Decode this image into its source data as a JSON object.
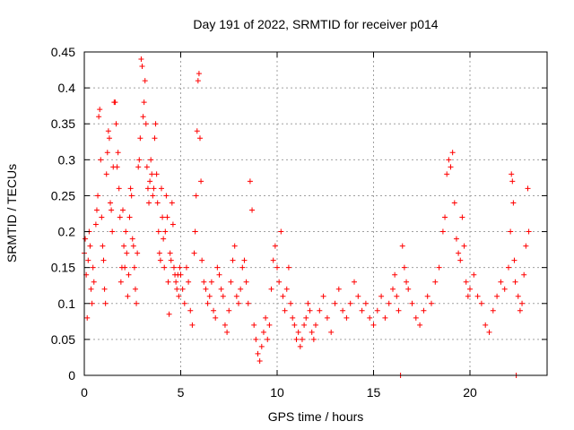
{
  "chart_data": {
    "type": "scatter",
    "title": "Day 191 of 2022, SRMTID for receiver p014",
    "xlabel": "GPS time / hours",
    "ylabel": "SRMTID / TECUs",
    "xlim": [
      0,
      24
    ],
    "ylim": [
      0,
      0.45
    ],
    "x_ticks": [
      0,
      5,
      10,
      15,
      20
    ],
    "x_tick_labels": [
      "0",
      "5",
      "10",
      "15",
      "20"
    ],
    "y_ticks": [
      0,
      0.05,
      0.1,
      0.15,
      0.2,
      0.25,
      0.3,
      0.35,
      0.4,
      0.45
    ],
    "y_tick_labels": [
      "0",
      "0.05",
      "0.1",
      "0.15",
      "0.2",
      "0.25",
      "0.3",
      "0.35",
      "0.4",
      "0.45"
    ],
    "grid": true,
    "marker": "plus",
    "color": "#ff0000",
    "series": [
      {
        "name": "SRMTID",
        "points": [
          [
            0.0,
            0.17
          ],
          [
            0.05,
            0.19
          ],
          [
            0.1,
            0.14
          ],
          [
            0.15,
            0.08
          ],
          [
            0.2,
            0.16
          ],
          [
            0.25,
            0.2
          ],
          [
            0.3,
            0.18
          ],
          [
            0.35,
            0.12
          ],
          [
            0.4,
            0.1
          ],
          [
            0.45,
            0.15
          ],
          [
            0.5,
            0.13
          ],
          [
            0.6,
            0.21
          ],
          [
            0.65,
            0.23
          ],
          [
            0.7,
            0.25
          ],
          [
            0.75,
            0.36
          ],
          [
            0.8,
            0.37
          ],
          [
            0.85,
            0.3
          ],
          [
            0.9,
            0.22
          ],
          [
            0.95,
            0.18
          ],
          [
            1.0,
            0.16
          ],
          [
            1.05,
            0.12
          ],
          [
            1.1,
            0.1
          ],
          [
            1.15,
            0.28
          ],
          [
            1.2,
            0.31
          ],
          [
            1.25,
            0.34
          ],
          [
            1.3,
            0.33
          ],
          [
            1.35,
            0.24
          ],
          [
            1.4,
            0.23
          ],
          [
            1.45,
            0.2
          ],
          [
            1.5,
            0.29
          ],
          [
            1.55,
            0.38
          ],
          [
            1.6,
            0.38
          ],
          [
            1.65,
            0.35
          ],
          [
            1.7,
            0.29
          ],
          [
            1.75,
            0.31
          ],
          [
            1.8,
            0.26
          ],
          [
            1.85,
            0.22
          ],
          [
            1.9,
            0.13
          ],
          [
            1.95,
            0.15
          ],
          [
            2.0,
            0.23
          ],
          [
            2.05,
            0.18
          ],
          [
            2.1,
            0.15
          ],
          [
            2.15,
            0.2
          ],
          [
            2.2,
            0.17
          ],
          [
            2.25,
            0.11
          ],
          [
            2.3,
            0.14
          ],
          [
            2.35,
            0.22
          ],
          [
            2.4,
            0.26
          ],
          [
            2.45,
            0.25
          ],
          [
            2.5,
            0.19
          ],
          [
            2.55,
            0.18
          ],
          [
            2.6,
            0.15
          ],
          [
            2.65,
            0.12
          ],
          [
            2.7,
            0.1
          ],
          [
            2.75,
            0.17
          ],
          [
            2.8,
            0.29
          ],
          [
            2.85,
            0.3
          ],
          [
            2.9,
            0.33
          ],
          [
            2.95,
            0.44
          ],
          [
            3.0,
            0.43
          ],
          [
            3.05,
            0.36
          ],
          [
            3.1,
            0.38
          ],
          [
            3.15,
            0.41
          ],
          [
            3.2,
            0.35
          ],
          [
            3.25,
            0.29
          ],
          [
            3.3,
            0.26
          ],
          [
            3.35,
            0.24
          ],
          [
            3.4,
            0.27
          ],
          [
            3.45,
            0.3
          ],
          [
            3.5,
            0.28
          ],
          [
            3.55,
            0.25
          ],
          [
            3.6,
            0.26
          ],
          [
            3.65,
            0.33
          ],
          [
            3.7,
            0.35
          ],
          [
            3.75,
            0.28
          ],
          [
            3.8,
            0.24
          ],
          [
            3.85,
            0.2
          ],
          [
            3.9,
            0.17
          ],
          [
            3.95,
            0.16
          ],
          [
            4.0,
            0.26
          ],
          [
            4.05,
            0.22
          ],
          [
            4.1,
            0.19
          ],
          [
            4.15,
            0.15
          ],
          [
            4.2,
            0.2
          ],
          [
            4.25,
            0.25
          ],
          [
            4.3,
            0.22
          ],
          [
            4.35,
            0.13
          ],
          [
            4.4,
            0.085
          ],
          [
            4.45,
            0.17
          ],
          [
            4.5,
            0.16
          ],
          [
            4.55,
            0.24
          ],
          [
            4.6,
            0.21
          ],
          [
            4.65,
            0.15
          ],
          [
            4.7,
            0.14
          ],
          [
            4.75,
            0.13
          ],
          [
            4.8,
            0.12
          ],
          [
            4.85,
            0.14
          ],
          [
            4.9,
            0.11
          ],
          [
            4.95,
            0.15
          ],
          [
            5.0,
            0.14
          ],
          [
            5.1,
            0.12
          ],
          [
            5.2,
            0.1
          ],
          [
            5.3,
            0.15
          ],
          [
            5.4,
            0.13
          ],
          [
            5.5,
            0.09
          ],
          [
            5.6,
            0.07
          ],
          [
            5.7,
            0.17
          ],
          [
            5.75,
            0.2
          ],
          [
            5.8,
            0.25
          ],
          [
            5.85,
            0.34
          ],
          [
            5.9,
            0.41
          ],
          [
            5.95,
            0.42
          ],
          [
            6.0,
            0.33
          ],
          [
            6.05,
            0.27
          ],
          [
            6.1,
            0.16
          ],
          [
            6.2,
            0.13
          ],
          [
            6.3,
            0.12
          ],
          [
            6.4,
            0.1
          ],
          [
            6.5,
            0.11
          ],
          [
            6.6,
            0.13
          ],
          [
            6.7,
            0.09
          ],
          [
            6.8,
            0.08
          ],
          [
            6.9,
            0.15
          ],
          [
            7.0,
            0.14
          ],
          [
            7.1,
            0.12
          ],
          [
            7.2,
            0.11
          ],
          [
            7.3,
            0.07
          ],
          [
            7.4,
            0.06
          ],
          [
            7.5,
            0.09
          ],
          [
            7.6,
            0.13
          ],
          [
            7.7,
            0.16
          ],
          [
            7.8,
            0.18
          ],
          [
            7.9,
            0.11
          ],
          [
            8.0,
            0.1
          ],
          [
            8.1,
            0.12
          ],
          [
            8.2,
            0.15
          ],
          [
            8.3,
            0.16
          ],
          [
            8.4,
            0.13
          ],
          [
            8.5,
            0.1
          ],
          [
            8.6,
            0.27
          ],
          [
            8.7,
            0.23
          ],
          [
            8.8,
            0.07
          ],
          [
            8.9,
            0.05
          ],
          [
            9.0,
            0.03
          ],
          [
            9.1,
            0.02
          ],
          [
            9.2,
            0.04
          ],
          [
            9.3,
            0.06
          ],
          [
            9.4,
            0.08
          ],
          [
            9.5,
            0.05
          ],
          [
            9.6,
            0.07
          ],
          [
            9.7,
            0.12
          ],
          [
            9.8,
            0.16
          ],
          [
            9.9,
            0.18
          ],
          [
            10.0,
            0.15
          ],
          [
            10.1,
            0.13
          ],
          [
            10.2,
            0.2
          ],
          [
            10.3,
            0.11
          ],
          [
            10.4,
            0.09
          ],
          [
            10.5,
            0.12
          ],
          [
            10.6,
            0.15
          ],
          [
            10.7,
            0.1
          ],
          [
            10.8,
            0.08
          ],
          [
            10.9,
            0.07
          ],
          [
            11.0,
            0.05
          ],
          [
            11.1,
            0.06
          ],
          [
            11.2,
            0.04
          ],
          [
            11.3,
            0.05
          ],
          [
            11.4,
            0.07
          ],
          [
            11.5,
            0.08
          ],
          [
            11.6,
            0.1
          ],
          [
            11.7,
            0.09
          ],
          [
            11.8,
            0.06
          ],
          [
            11.9,
            0.05
          ],
          [
            12.0,
            0.07
          ],
          [
            12.2,
            0.09
          ],
          [
            12.4,
            0.11
          ],
          [
            12.6,
            0.08
          ],
          [
            12.8,
            0.06
          ],
          [
            13.0,
            0.1
          ],
          [
            13.2,
            0.12
          ],
          [
            13.4,
            0.09
          ],
          [
            13.6,
            0.08
          ],
          [
            13.8,
            0.1
          ],
          [
            14.0,
            0.13
          ],
          [
            14.2,
            0.11
          ],
          [
            14.4,
            0.09
          ],
          [
            14.6,
            0.1
          ],
          [
            14.8,
            0.08
          ],
          [
            15.0,
            0.07
          ],
          [
            15.2,
            0.09
          ],
          [
            15.4,
            0.11
          ],
          [
            15.6,
            0.08
          ],
          [
            15.8,
            0.1
          ],
          [
            16.0,
            0.12
          ],
          [
            16.1,
            0.14
          ],
          [
            16.2,
            0.11
          ],
          [
            16.3,
            0.09
          ],
          [
            16.4,
            0.0
          ],
          [
            16.5,
            0.18
          ],
          [
            16.6,
            0.15
          ],
          [
            16.7,
            0.13
          ],
          [
            16.8,
            0.12
          ],
          [
            17.0,
            0.1
          ],
          [
            17.2,
            0.08
          ],
          [
            17.4,
            0.07
          ],
          [
            17.6,
            0.09
          ],
          [
            17.8,
            0.11
          ],
          [
            18.0,
            0.1
          ],
          [
            18.2,
            0.13
          ],
          [
            18.4,
            0.15
          ],
          [
            18.6,
            0.2
          ],
          [
            18.7,
            0.22
          ],
          [
            18.8,
            0.28
          ],
          [
            18.9,
            0.3
          ],
          [
            19.0,
            0.29
          ],
          [
            19.1,
            0.31
          ],
          [
            19.2,
            0.24
          ],
          [
            19.3,
            0.19
          ],
          [
            19.4,
            0.17
          ],
          [
            19.5,
            0.16
          ],
          [
            19.6,
            0.22
          ],
          [
            19.7,
            0.18
          ],
          [
            19.8,
            0.13
          ],
          [
            19.9,
            0.11
          ],
          [
            20.0,
            0.12
          ],
          [
            20.2,
            0.14
          ],
          [
            20.4,
            0.11
          ],
          [
            20.6,
            0.1
          ],
          [
            20.8,
            0.07
          ],
          [
            21.0,
            0.06
          ],
          [
            21.2,
            0.09
          ],
          [
            21.4,
            0.11
          ],
          [
            21.6,
            0.13
          ],
          [
            21.8,
            0.12
          ],
          [
            22.0,
            0.15
          ],
          [
            22.1,
            0.2
          ],
          [
            22.15,
            0.28
          ],
          [
            22.2,
            0.27
          ],
          [
            22.25,
            0.24
          ],
          [
            22.3,
            0.16
          ],
          [
            22.35,
            0.13
          ],
          [
            22.4,
            0.0
          ],
          [
            22.5,
            0.11
          ],
          [
            22.6,
            0.09
          ],
          [
            22.7,
            0.1
          ],
          [
            22.8,
            0.14
          ],
          [
            22.9,
            0.18
          ],
          [
            23.0,
            0.26
          ],
          [
            23.05,
            0.2
          ]
        ]
      }
    ]
  }
}
